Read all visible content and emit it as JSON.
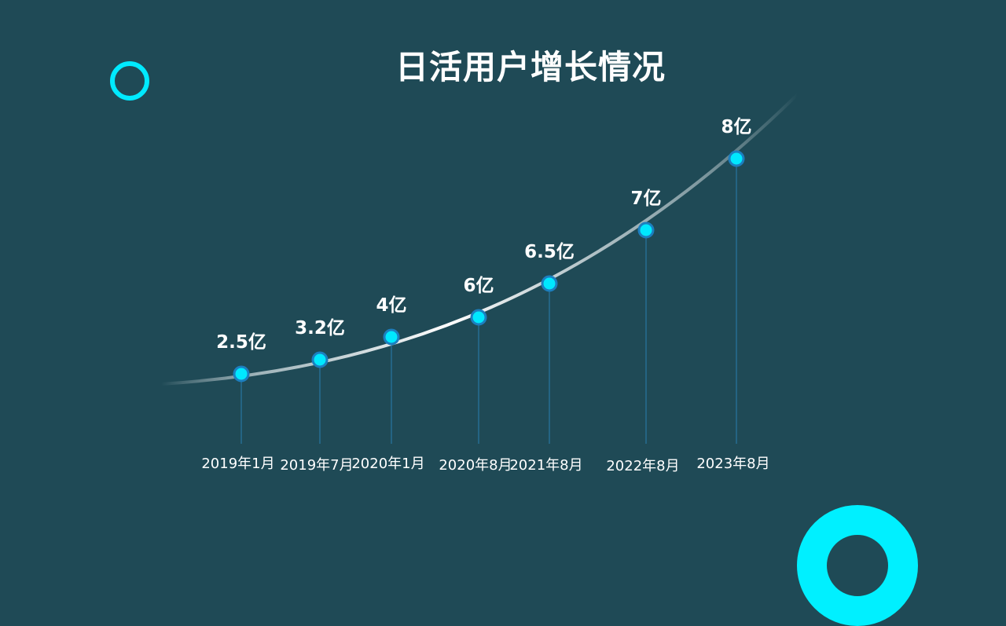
{
  "title": "日活用户增长情况",
  "colors": {
    "background": "#1f4a56",
    "accent": "#00eaff",
    "point_fill": "#00e8ff",
    "point_stroke": "#1c7fbf",
    "drop_line": "#2a7fb0"
  },
  "chart_data": {
    "type": "line",
    "categories": [
      "2019年1月",
      "2019年7月",
      "2020年1月",
      "2020年8月",
      "2021年8月",
      "2022年8月",
      "2023年8月"
    ],
    "values": [
      2.5,
      3.2,
      4,
      6,
      6.5,
      7,
      8
    ],
    "data_labels": [
      "2.5亿",
      "3.2亿",
      "4亿",
      "6亿",
      "6.5亿",
      "7亿",
      "8亿"
    ],
    "title": "日活用户增长情况",
    "xlabel": "",
    "ylabel": "",
    "grid": false,
    "legend": "none"
  }
}
